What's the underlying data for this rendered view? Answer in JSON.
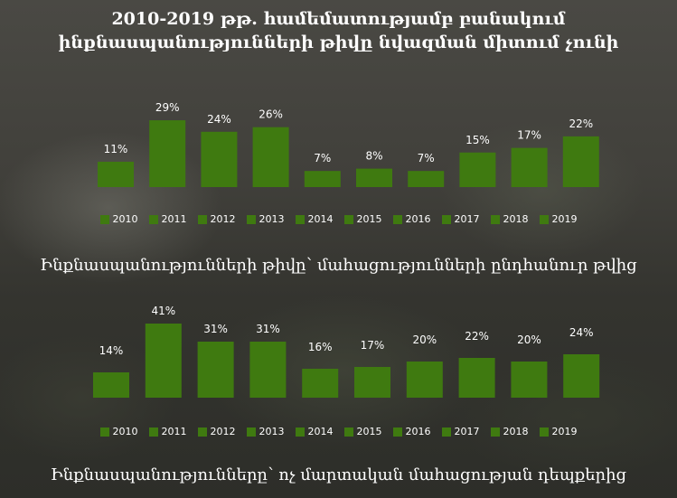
{
  "title": {
    "line1": "2010-2019 թթ. համեմատությամբ բանակում",
    "line2": "ինքնասպանությունների թիվը նվազման միտում չունի"
  },
  "colors": {
    "bar": "#3f7a10",
    "text": "#ffffff"
  },
  "chart_data": [
    {
      "type": "bar",
      "title": "Ինքնասպանությունների թիվը՝ մահացությունների ընդհանուր թվից",
      "categories": [
        "2010",
        "2011",
        "2012",
        "2013",
        "2014",
        "2015",
        "2016",
        "2017",
        "2018",
        "2019"
      ],
      "values": [
        11,
        29,
        24,
        26,
        7,
        8,
        7,
        15,
        17,
        22
      ],
      "labels": [
        "11%",
        "29%",
        "24%",
        "26%",
        "7%",
        "8%",
        "7%",
        "15%",
        "17%",
        "22%"
      ],
      "unit": "%",
      "legend_position": "bottom"
    },
    {
      "type": "bar",
      "title": "Ինքնասպանությունները՝ ոչ մարտական մահացության դեպքերից",
      "categories": [
        "2010",
        "2011",
        "2012",
        "2013",
        "2014",
        "2015",
        "2016",
        "2017",
        "2018",
        "2019"
      ],
      "values": [
        14,
        41,
        31,
        31,
        16,
        17,
        20,
        22,
        20,
        24
      ],
      "labels": [
        "14%",
        "41%",
        "31%",
        "31%",
        "16%",
        "17%",
        "20%",
        "22%",
        "20%",
        "24%"
      ],
      "unit": "%",
      "legend_position": "bottom"
    }
  ]
}
